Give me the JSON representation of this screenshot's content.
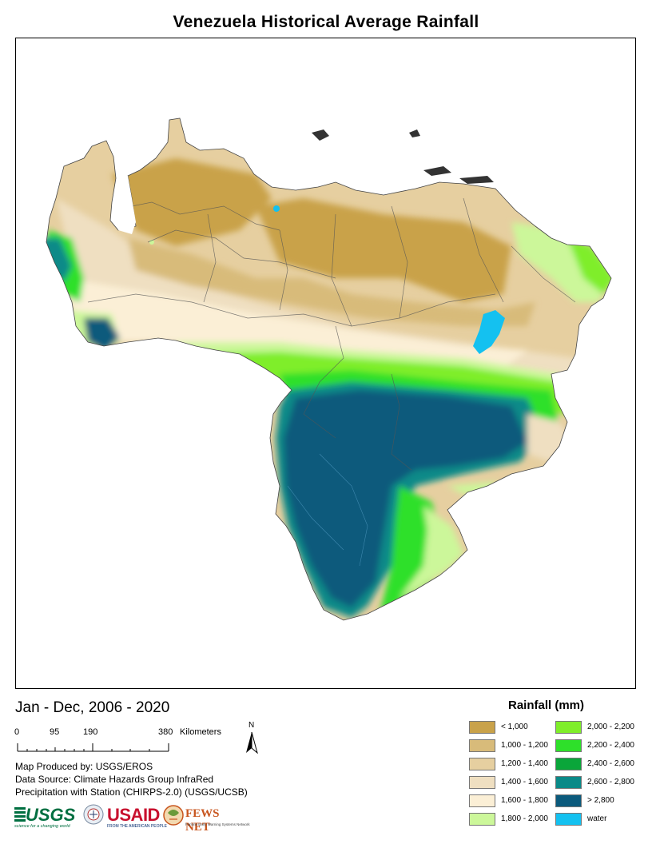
{
  "title": "Venezuela Historical Average Rainfall",
  "period": "Jan - Dec, 2006 - 2020",
  "scale": {
    "ticks": [
      "0",
      "95",
      "190",
      "380"
    ],
    "units": "Kilometers"
  },
  "north_label": "N",
  "credits": [
    "Map Produced by: USGS/EROS",
    "Data Source: Climate Hazards Group InfraRed",
    "Precipitation with Station (CHIRPS-2.0) (USGS/UCSB)"
  ],
  "logos": {
    "usgs": "USGS",
    "usgs_tagline": "science for a changing world",
    "usaid": "USAID",
    "usaid_tagline": "FROM THE AMERICAN PEOPLE",
    "fews": "FEWS NET",
    "fews_tagline": "Famine Early Warning Systems Network"
  },
  "legend": {
    "title": "Rainfall (mm)",
    "items": [
      {
        "label": "< 1,000",
        "color": "#c9a24a"
      },
      {
        "label": "1,000 - 1,200",
        "color": "#d8bb7a"
      },
      {
        "label": "1,200 - 1,400",
        "color": "#e6cfa0"
      },
      {
        "label": "1,400 - 1,600",
        "color": "#efdfc1"
      },
      {
        "label": "1,600 - 1,800",
        "color": "#fbefd6"
      },
      {
        "label": "1,800 - 2,000",
        "color": "#ccf79a"
      },
      {
        "label": "2,000 - 2,200",
        "color": "#7fee2a"
      },
      {
        "label": "2,200 - 2,400",
        "color": "#2ee02a"
      },
      {
        "label": "2,400 - 2,600",
        "color": "#0aa63a"
      },
      {
        "label": "2,600 - 2,800",
        "color": "#0a8a88"
      },
      {
        "label": "> 2,800",
        "color": "#0b5a7c"
      },
      {
        "label": "water",
        "color": "#14c1f0"
      }
    ]
  }
}
